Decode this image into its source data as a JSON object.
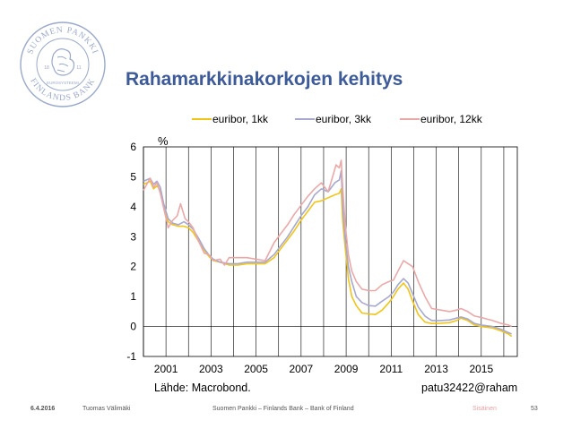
{
  "title": "Rahamarkkinakorkojen kehitys",
  "colors": {
    "title": "#3d5a99",
    "logo": "#9aa9c9",
    "footer_class": "#e5a3a3"
  },
  "logo": {
    "icon": "suomen-pankki-lion-emblem",
    "text_top": "SUOMEN PANKKI",
    "text_bottom": "FINLANDS BANK",
    "years_left": "18",
    "years_right": "11",
    "text_center": "EUROSYSTEEMI"
  },
  "unit_label": "%",
  "source": "Lähde: Macrobond.",
  "chart_id": "patu32422@raham",
  "footer": {
    "date": "6.4.2016",
    "author": "Tuomas Välimäki",
    "organization": "Suomen Pankki – Finlands Bank – Bank of Finland",
    "classification": "Sisäinen",
    "page": "53"
  },
  "chart_data": {
    "type": "line",
    "title": "Rahamarkkinakorkojen kehitys",
    "xlabel": "",
    "ylabel": "%",
    "xlim": [
      2000.0,
      2016.6
    ],
    "ylim": [
      -1,
      6
    ],
    "x_ticks": [
      2001,
      2003,
      2005,
      2007,
      2009,
      2011,
      2013,
      2015
    ],
    "y_ticks": [
      -1,
      0,
      1,
      2,
      3,
      4,
      5,
      6
    ],
    "grid": "vertical",
    "legend": "top",
    "series": [
      {
        "name": "euribor, 1kk",
        "color": "#f0c419",
        "points": [
          [
            2000.0,
            4.75
          ],
          [
            2000.3,
            4.85
          ],
          [
            2000.45,
            4.6
          ],
          [
            2000.6,
            4.7
          ],
          [
            2000.75,
            4.55
          ],
          [
            2000.9,
            4.0
          ],
          [
            2001.1,
            3.5
          ],
          [
            2001.3,
            3.4
          ],
          [
            2001.55,
            3.35
          ],
          [
            2001.8,
            3.35
          ],
          [
            2002.0,
            3.3
          ],
          [
            2002.2,
            3.15
          ],
          [
            2002.45,
            2.85
          ],
          [
            2002.7,
            2.55
          ],
          [
            2002.9,
            2.35
          ],
          [
            2003.1,
            2.2
          ],
          [
            2003.4,
            2.15
          ],
          [
            2003.8,
            2.05
          ],
          [
            2004.2,
            2.05
          ],
          [
            2004.6,
            2.1
          ],
          [
            2005.0,
            2.1
          ],
          [
            2005.4,
            2.1
          ],
          [
            2005.8,
            2.3
          ],
          [
            2006.1,
            2.6
          ],
          [
            2006.4,
            2.9
          ],
          [
            2006.7,
            3.2
          ],
          [
            2007.0,
            3.55
          ],
          [
            2007.3,
            3.85
          ],
          [
            2007.6,
            4.15
          ],
          [
            2007.9,
            4.2
          ],
          [
            2008.2,
            4.3
          ],
          [
            2008.5,
            4.4
          ],
          [
            2008.7,
            4.45
          ],
          [
            2008.78,
            4.6
          ],
          [
            2008.85,
            3.5
          ],
          [
            2008.95,
            2.7
          ],
          [
            2009.1,
            1.6
          ],
          [
            2009.25,
            1.0
          ],
          [
            2009.45,
            0.7
          ],
          [
            2009.7,
            0.45
          ],
          [
            2010.0,
            0.42
          ],
          [
            2010.3,
            0.4
          ],
          [
            2010.6,
            0.55
          ],
          [
            2010.9,
            0.8
          ],
          [
            2011.1,
            1.0
          ],
          [
            2011.3,
            1.25
          ],
          [
            2011.55,
            1.45
          ],
          [
            2011.75,
            1.25
          ],
          [
            2011.95,
            0.85
          ],
          [
            2012.2,
            0.4
          ],
          [
            2012.5,
            0.15
          ],
          [
            2012.8,
            0.1
          ],
          [
            2013.2,
            0.11
          ],
          [
            2013.6,
            0.13
          ],
          [
            2013.9,
            0.2
          ],
          [
            2014.1,
            0.28
          ],
          [
            2014.4,
            0.2
          ],
          [
            2014.7,
            0.05
          ],
          [
            2015.0,
            0.0
          ],
          [
            2015.5,
            -0.05
          ],
          [
            2015.9,
            -0.15
          ],
          [
            2016.2,
            -0.25
          ],
          [
            2016.35,
            -0.33
          ]
        ]
      },
      {
        "name": "euribor, 3kk",
        "color": "#a7a9cf",
        "points": [
          [
            2000.0,
            4.85
          ],
          [
            2000.3,
            4.95
          ],
          [
            2000.45,
            4.75
          ],
          [
            2000.6,
            4.85
          ],
          [
            2000.75,
            4.65
          ],
          [
            2000.9,
            4.1
          ],
          [
            2001.1,
            3.6
          ],
          [
            2001.3,
            3.45
          ],
          [
            2001.55,
            3.4
          ],
          [
            2001.8,
            3.5
          ],
          [
            2002.0,
            3.4
          ],
          [
            2002.2,
            3.25
          ],
          [
            2002.45,
            2.95
          ],
          [
            2002.7,
            2.6
          ],
          [
            2002.9,
            2.4
          ],
          [
            2003.1,
            2.25
          ],
          [
            2003.4,
            2.15
          ],
          [
            2003.8,
            2.1
          ],
          [
            2004.2,
            2.1
          ],
          [
            2004.6,
            2.15
          ],
          [
            2005.0,
            2.15
          ],
          [
            2005.4,
            2.15
          ],
          [
            2005.8,
            2.4
          ],
          [
            2006.1,
            2.7
          ],
          [
            2006.4,
            3.0
          ],
          [
            2006.7,
            3.35
          ],
          [
            2007.0,
            3.7
          ],
          [
            2007.3,
            4.0
          ],
          [
            2007.6,
            4.4
          ],
          [
            2007.9,
            4.6
          ],
          [
            2008.2,
            4.5
          ],
          [
            2008.5,
            4.8
          ],
          [
            2008.7,
            4.9
          ],
          [
            2008.78,
            5.2
          ],
          [
            2008.85,
            4.0
          ],
          [
            2008.95,
            3.0
          ],
          [
            2009.1,
            2.0
          ],
          [
            2009.25,
            1.5
          ],
          [
            2009.45,
            1.0
          ],
          [
            2009.7,
            0.8
          ],
          [
            2010.0,
            0.7
          ],
          [
            2010.3,
            0.68
          ],
          [
            2010.6,
            0.85
          ],
          [
            2010.9,
            1.0
          ],
          [
            2011.1,
            1.15
          ],
          [
            2011.3,
            1.4
          ],
          [
            2011.55,
            1.6
          ],
          [
            2011.75,
            1.45
          ],
          [
            2011.95,
            1.1
          ],
          [
            2012.2,
            0.65
          ],
          [
            2012.5,
            0.35
          ],
          [
            2012.8,
            0.2
          ],
          [
            2013.2,
            0.2
          ],
          [
            2013.6,
            0.22
          ],
          [
            2013.9,
            0.28
          ],
          [
            2014.1,
            0.32
          ],
          [
            2014.4,
            0.25
          ],
          [
            2014.7,
            0.1
          ],
          [
            2015.0,
            0.05
          ],
          [
            2015.5,
            0.0
          ],
          [
            2015.9,
            -0.1
          ],
          [
            2016.2,
            -0.2
          ],
          [
            2016.35,
            -0.25
          ]
        ]
      },
      {
        "name": "euribor, 12kk",
        "color": "#e9a9a9",
        "points": [
          [
            2000.0,
            4.55
          ],
          [
            2000.3,
            4.95
          ],
          [
            2000.45,
            4.65
          ],
          [
            2000.6,
            4.8
          ],
          [
            2000.75,
            4.45
          ],
          [
            2000.9,
            3.95
          ],
          [
            2001.1,
            3.3
          ],
          [
            2001.3,
            3.55
          ],
          [
            2001.5,
            3.7
          ],
          [
            2001.65,
            4.1
          ],
          [
            2001.85,
            3.6
          ],
          [
            2002.0,
            3.5
          ],
          [
            2002.2,
            3.3
          ],
          [
            2002.45,
            2.85
          ],
          [
            2002.7,
            2.45
          ],
          [
            2002.9,
            2.4
          ],
          [
            2003.1,
            2.2
          ],
          [
            2003.4,
            2.25
          ],
          [
            2003.6,
            2.05
          ],
          [
            2003.8,
            2.3
          ],
          [
            2004.2,
            2.3
          ],
          [
            2004.6,
            2.3
          ],
          [
            2005.0,
            2.25
          ],
          [
            2005.4,
            2.2
          ],
          [
            2005.8,
            2.8
          ],
          [
            2006.1,
            3.1
          ],
          [
            2006.4,
            3.4
          ],
          [
            2006.7,
            3.75
          ],
          [
            2007.0,
            4.05
          ],
          [
            2007.3,
            4.35
          ],
          [
            2007.6,
            4.6
          ],
          [
            2007.9,
            4.8
          ],
          [
            2008.2,
            4.5
          ],
          [
            2008.4,
            5.0
          ],
          [
            2008.55,
            5.4
          ],
          [
            2008.7,
            5.3
          ],
          [
            2008.78,
            5.55
          ],
          [
            2008.85,
            4.6
          ],
          [
            2008.95,
            3.5
          ],
          [
            2009.1,
            2.4
          ],
          [
            2009.25,
            1.85
          ],
          [
            2009.45,
            1.5
          ],
          [
            2009.7,
            1.25
          ],
          [
            2010.0,
            1.2
          ],
          [
            2010.3,
            1.2
          ],
          [
            2010.6,
            1.4
          ],
          [
            2010.9,
            1.5
          ],
          [
            2011.1,
            1.55
          ],
          [
            2011.3,
            1.85
          ],
          [
            2011.55,
            2.2
          ],
          [
            2011.75,
            2.1
          ],
          [
            2011.95,
            2.0
          ],
          [
            2012.2,
            1.5
          ],
          [
            2012.5,
            1.0
          ],
          [
            2012.8,
            0.6
          ],
          [
            2013.2,
            0.55
          ],
          [
            2013.6,
            0.5
          ],
          [
            2013.9,
            0.55
          ],
          [
            2014.1,
            0.6
          ],
          [
            2014.4,
            0.5
          ],
          [
            2014.7,
            0.35
          ],
          [
            2015.0,
            0.3
          ],
          [
            2015.5,
            0.2
          ],
          [
            2015.9,
            0.1
          ],
          [
            2016.2,
            0.05
          ],
          [
            2016.35,
            0.0
          ]
        ]
      }
    ]
  }
}
